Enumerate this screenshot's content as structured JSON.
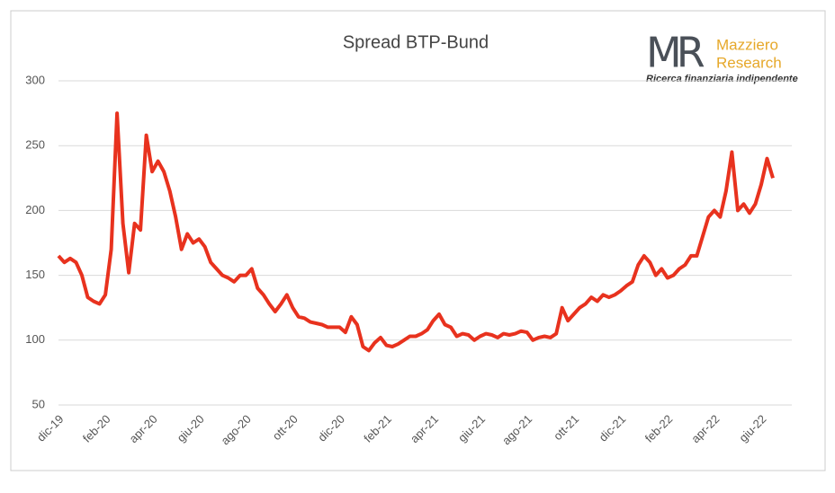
{
  "chart_data": {
    "type": "line",
    "title": "Spread BTP-Bund",
    "logo": {
      "mark": "MR",
      "name1": "Mazziero",
      "name2": "Research",
      "tagline": "Ricerca finanziaria indipendente"
    },
    "categories": [
      "dic-19",
      null,
      null,
      null,
      null,
      null,
      null,
      null,
      "feb-20",
      null,
      null,
      null,
      null,
      null,
      null,
      null,
      "apr-20",
      null,
      null,
      null,
      null,
      null,
      null,
      null,
      "giu-20",
      null,
      null,
      null,
      null,
      null,
      null,
      null,
      "ago-20",
      null,
      null,
      null,
      null,
      null,
      null,
      null,
      "ott-20",
      null,
      null,
      null,
      null,
      null,
      null,
      null,
      "dic-20",
      null,
      null,
      null,
      null,
      null,
      null,
      null,
      "feb-21",
      null,
      null,
      null,
      null,
      null,
      null,
      null,
      "apr-21",
      null,
      null,
      null,
      null,
      null,
      null,
      null,
      "giu-21",
      null,
      null,
      null,
      null,
      null,
      null,
      null,
      "ago-21",
      null,
      null,
      null,
      null,
      null,
      null,
      null,
      "ott-21",
      null,
      null,
      null,
      null,
      null,
      null,
      null,
      "dic-21",
      null,
      null,
      null,
      null,
      null,
      null,
      null,
      "feb-22",
      null,
      null,
      null,
      null,
      null,
      null,
      null,
      "apr-22",
      null,
      null,
      null,
      null,
      null,
      null,
      null,
      "giu-22",
      null,
      null
    ],
    "series": [
      {
        "name": "Spread BTP-Bund",
        "color": "#e8321e",
        "values": [
          165,
          160,
          163,
          160,
          150,
          133,
          130,
          128,
          135,
          170,
          275,
          190,
          152,
          190,
          185,
          258,
          230,
          238,
          230,
          215,
          195,
          170,
          182,
          175,
          178,
          172,
          160,
          155,
          150,
          148,
          145,
          150,
          150,
          155,
          140,
          135,
          128,
          122,
          128,
          135,
          125,
          118,
          117,
          114,
          113,
          112,
          110,
          110,
          110,
          106,
          118,
          112,
          95,
          92,
          98,
          102,
          96,
          95,
          97,
          100,
          103,
          103,
          105,
          108,
          115,
          120,
          112,
          110,
          103,
          105,
          104,
          100,
          103,
          105,
          104,
          102,
          105,
          104,
          105,
          107,
          106,
          100,
          102,
          103,
          102,
          105,
          125,
          115,
          120,
          125,
          128,
          133,
          130,
          135,
          133,
          135,
          138,
          142,
          145,
          158,
          165,
          160,
          150,
          155,
          148,
          150,
          155,
          158,
          165,
          165,
          180,
          195,
          200,
          195,
          215,
          245,
          200,
          205,
          198,
          205,
          220,
          240,
          225
        ]
      }
    ],
    "ylim": [
      50,
      300
    ],
    "yticks": [
      50,
      100,
      150,
      200,
      250,
      300
    ],
    "grid": true
  }
}
